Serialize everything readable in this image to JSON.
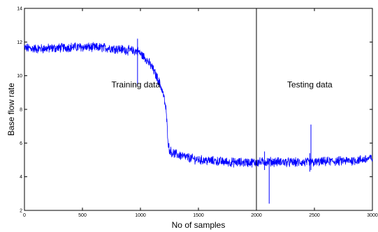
{
  "chart_data": {
    "type": "line",
    "xlabel": "No of samples",
    "ylabel": "Base flow rate",
    "xlim": [
      0,
      3000
    ],
    "ylim": [
      2,
      14
    ],
    "xticks": [
      0,
      500,
      1000,
      1500,
      2000,
      2500,
      3000
    ],
    "yticks": [
      2,
      4,
      6,
      8,
      10,
      12,
      14
    ],
    "grid": false,
    "annotations": [
      {
        "text": "Training data",
        "x": 960,
        "y": 9.3
      },
      {
        "text": "Testing data",
        "x": 2460,
        "y": 9.3
      }
    ],
    "split_line": {
      "x": 2000
    },
    "series": [
      {
        "color": "#0000ff",
        "x": [
          0,
          100,
          200,
          300,
          400,
          500,
          600,
          700,
          800,
          900,
          980,
          1000,
          1050,
          1100,
          1150,
          1180,
          1200,
          1220,
          1230,
          1240,
          1250,
          1270,
          1300,
          1400,
          1500,
          1600,
          1700,
          1800,
          1900,
          2000,
          2100,
          2200,
          2300,
          2400,
          2500,
          2600,
          2700,
          2800,
          2900,
          3000
        ],
        "values": [
          11.65,
          11.6,
          11.62,
          11.65,
          11.7,
          11.7,
          11.68,
          11.66,
          11.6,
          11.5,
          11.45,
          11.3,
          11.0,
          10.5,
          9.8,
          9.3,
          8.8,
          8.0,
          7.0,
          6.0,
          5.6,
          5.45,
          5.35,
          5.15,
          5.0,
          4.95,
          4.9,
          4.85,
          4.85,
          4.85,
          4.9,
          4.88,
          4.85,
          4.85,
          4.85,
          4.9,
          4.92,
          4.95,
          5.0,
          5.1
        ],
        "spikes": [
          {
            "x": 975,
            "min": 9.4,
            "max": 12.2
          },
          {
            "x": 2110,
            "min": 2.4,
            "max": 5.0
          },
          {
            "x": 2470,
            "min": 4.4,
            "max": 7.1
          },
          {
            "x": 2070,
            "min": 4.4,
            "max": 5.5
          },
          {
            "x": 2460,
            "min": 4.3,
            "max": 5.4
          }
        ],
        "noise_amplitude": 0.25
      }
    ]
  }
}
